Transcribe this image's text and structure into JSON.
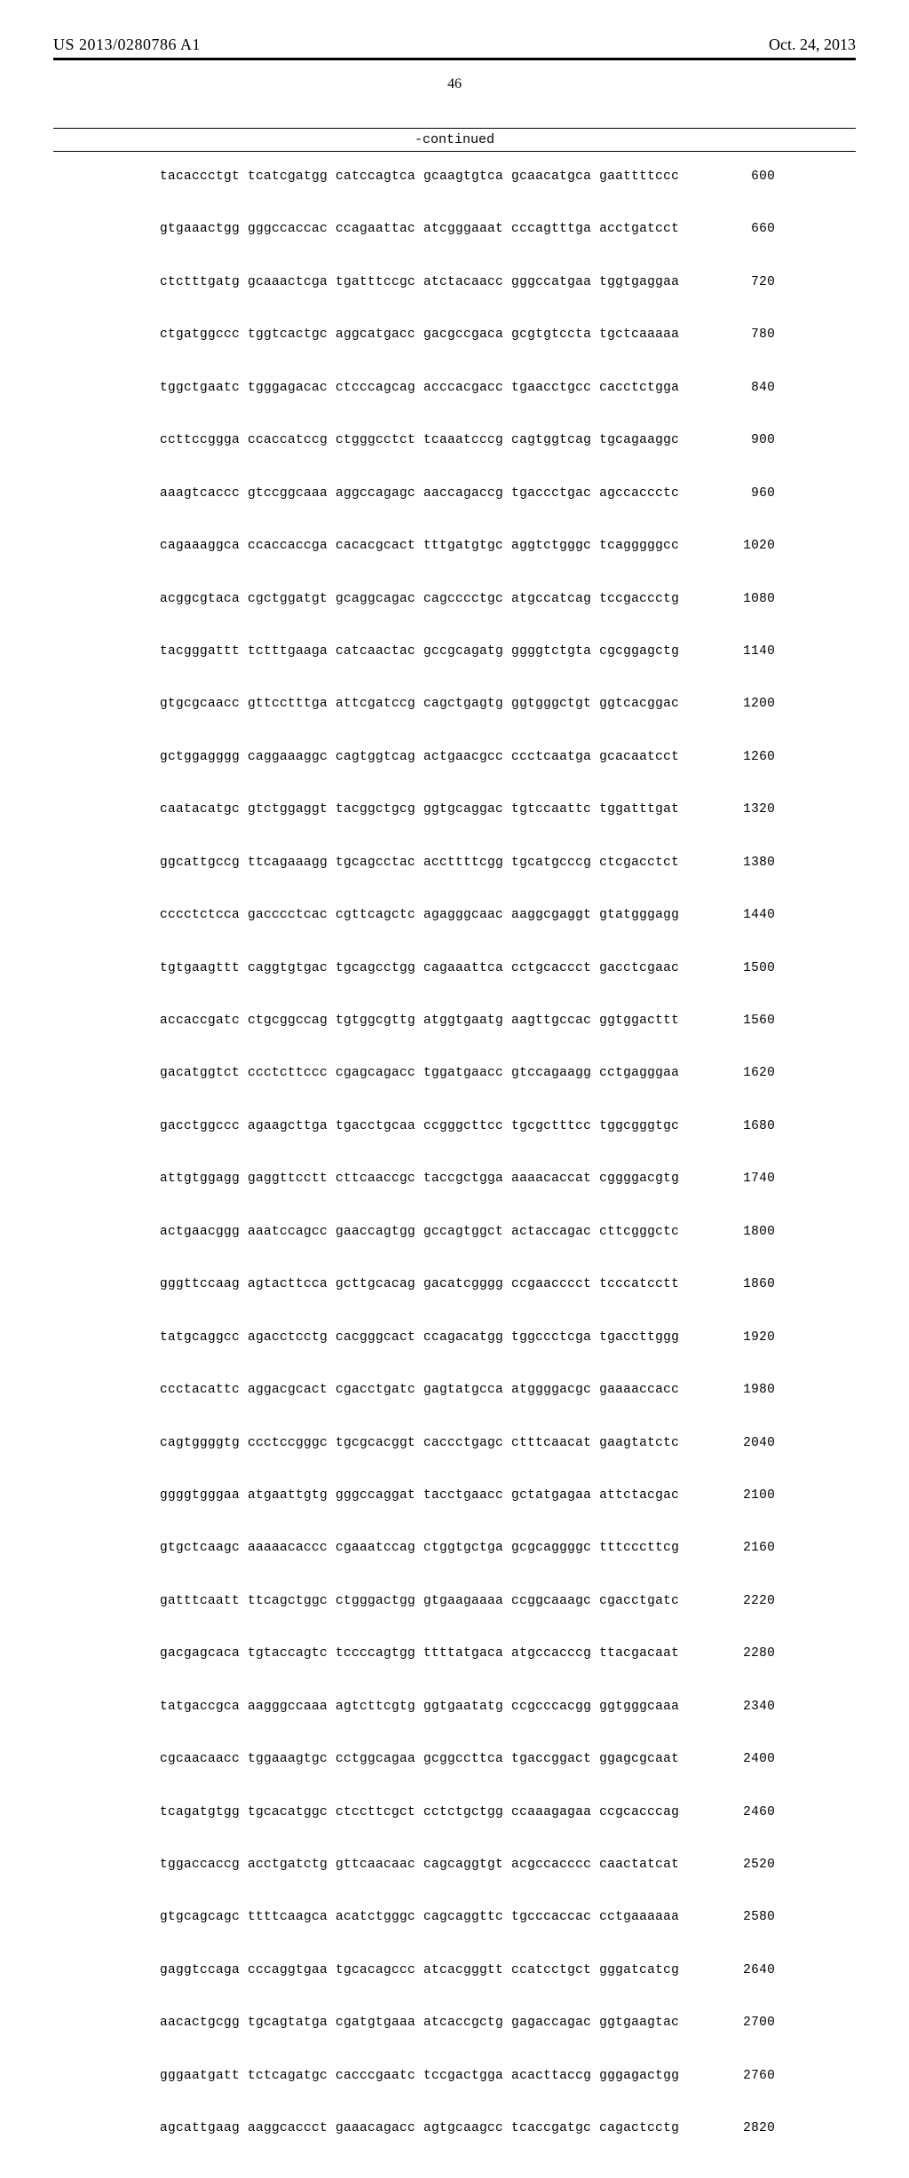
{
  "header": {
    "pub_number": "US 2013/0280786 A1",
    "pub_date": "Oct. 24, 2013",
    "page_number": "46",
    "continued_label": "-continued"
  },
  "sequence": {
    "rows": [
      {
        "groups": [
          "tacaccctgt",
          "tcatcgatgg",
          "catccagtca",
          "gcaagtgtca",
          "gcaacatgca",
          "gaattttccc"
        ],
        "pos": "600"
      },
      {
        "groups": [
          "gtgaaactgg",
          "gggccaccac",
          "ccagaattac",
          "atcgggaaat",
          "cccagtttga",
          "acctgatcct"
        ],
        "pos": "660"
      },
      {
        "groups": [
          "ctctttgatg",
          "gcaaactcga",
          "tgatttccgc",
          "atctacaacc",
          "gggccatgaa",
          "tggtgaggaa"
        ],
        "pos": "720"
      },
      {
        "groups": [
          "ctgatggccc",
          "tggtcactgc",
          "aggcatgacc",
          "gacgccgaca",
          "gcgtgtccta",
          "tgctcaaaaa"
        ],
        "pos": "780"
      },
      {
        "groups": [
          "tggctgaatc",
          "tgggagacac",
          "ctcccagcag",
          "acccacgacc",
          "tgaacctgcc",
          "cacctctgga"
        ],
        "pos": "840"
      },
      {
        "groups": [
          "ccttccggga",
          "ccaccatccg",
          "ctgggcctct",
          "tcaaatcccg",
          "cagtggtcag",
          "tgcagaaggc"
        ],
        "pos": "900"
      },
      {
        "groups": [
          "aaagtcaccc",
          "gtccggcaaa",
          "aggccagagc",
          "aaccagaccg",
          "tgaccctgac",
          "agccaccctc"
        ],
        "pos": "960"
      },
      {
        "groups": [
          "cagaaaggca",
          "ccaccaccga",
          "cacacgcact",
          "tttgatgtgc",
          "aggtctgggc",
          "tcagggggcc"
        ],
        "pos": "1020"
      },
      {
        "groups": [
          "acggcgtaca",
          "cgctggatgt",
          "gcaggcagac",
          "cagcccctgc",
          "atgccatcag",
          "tccgaccctg"
        ],
        "pos": "1080"
      },
      {
        "groups": [
          "tacgggattt",
          "tctttgaaga",
          "catcaactac",
          "gccgcagatg",
          "ggggtctgta",
          "cgcggagctg"
        ],
        "pos": "1140"
      },
      {
        "groups": [
          "gtgcgcaacc",
          "gttcctttga",
          "attcgatccg",
          "cagctgagtg",
          "ggtgggctgt",
          "ggtcacggac"
        ],
        "pos": "1200"
      },
      {
        "groups": [
          "gctggagggg",
          "caggaaaggc",
          "cagtggtcag",
          "actgaacgcc",
          "ccctcaatga",
          "gcacaatcct"
        ],
        "pos": "1260"
      },
      {
        "groups": [
          "caatacatgc",
          "gtctggaggt",
          "tacggctgcg",
          "ggtgcaggac",
          "tgtccaattc",
          "tggatttgat"
        ],
        "pos": "1320"
      },
      {
        "groups": [
          "ggcattgccg",
          "ttcagaaagg",
          "tgcagcctac",
          "accttttcgg",
          "tgcatgcccg",
          "ctcgacctct"
        ],
        "pos": "1380"
      },
      {
        "groups": [
          "cccctctcca",
          "gacccctcac",
          "cgttcagctc",
          "agagggcaac",
          "aaggcgaggt",
          "gtatgggagg"
        ],
        "pos": "1440"
      },
      {
        "groups": [
          "tgtgaagttt",
          "caggtgtgac",
          "tgcagcctgg",
          "cagaaattca",
          "cctgcaccct",
          "gacctcgaac"
        ],
        "pos": "1500"
      },
      {
        "groups": [
          "accaccgatc",
          "ctgcggccag",
          "tgtggcgttg",
          "atggtgaatg",
          "aagttgccac",
          "ggtggacttt"
        ],
        "pos": "1560"
      },
      {
        "groups": [
          "gacatggtct",
          "ccctcttccc",
          "cgagcagacc",
          "tggatgaacc",
          "gtccagaagg",
          "cctgagggaa"
        ],
        "pos": "1620"
      },
      {
        "groups": [
          "gacctggccc",
          "agaagcttga",
          "tgacctgcaa",
          "ccgggcttcc",
          "tgcgctttcc",
          "tggcgggtgc"
        ],
        "pos": "1680"
      },
      {
        "groups": [
          "attgtggagg",
          "gaggttcctt",
          "cttcaaccgc",
          "taccgctgga",
          "aaaacaccat",
          "cggggacgtg"
        ],
        "pos": "1740"
      },
      {
        "groups": [
          "actgaacggg",
          "aaatccagcc",
          "gaaccagtgg",
          "gccagtggct",
          "actaccagac",
          "cttcgggctc"
        ],
        "pos": "1800"
      },
      {
        "groups": [
          "gggttccaag",
          "agtacttcca",
          "gcttgcacag",
          "gacatcgggg",
          "ccgaacccct",
          "tcccatcctt"
        ],
        "pos": "1860"
      },
      {
        "groups": [
          "tatgcaggcc",
          "agacctcctg",
          "cacgggcact",
          "ccagacatgg",
          "tggccctcga",
          "tgaccttggg"
        ],
        "pos": "1920"
      },
      {
        "groups": [
          "ccctacattc",
          "aggacgcact",
          "cgacctgatc",
          "gagtatgcca",
          "atggggacgc",
          "gaaaaccacc"
        ],
        "pos": "1980"
      },
      {
        "groups": [
          "cagtggggtg",
          "ccctccgggc",
          "tgcgcacggt",
          "caccctgagc",
          "ctttcaacat",
          "gaagtatctc"
        ],
        "pos": "2040"
      },
      {
        "groups": [
          "ggggtgggaa",
          "atgaattgtg",
          "gggccaggat",
          "tacctgaacc",
          "gctatgagaa",
          "attctacgac"
        ],
        "pos": "2100"
      },
      {
        "groups": [
          "gtgctcaagc",
          "aaaaacaccc",
          "cgaaatccag",
          "ctggtgctga",
          "gcgcaggggc",
          "tttcccttcg"
        ],
        "pos": "2160"
      },
      {
        "groups": [
          "gatttcaatt",
          "ttcagctggc",
          "ctgggactgg",
          "gtgaagaaaa",
          "ccggcaaagc",
          "cgacctgatc"
        ],
        "pos": "2220"
      },
      {
        "groups": [
          "gacgagcaca",
          "tgtaccagtc",
          "tccccagtgg",
          "ttttatgaca",
          "atgccacccg",
          "ttacgacaat"
        ],
        "pos": "2280"
      },
      {
        "groups": [
          "tatgaccgca",
          "aagggccaaa",
          "agtcttcgtg",
          "ggtgaatatg",
          "ccgcccacgg",
          "ggtgggcaaa"
        ],
        "pos": "2340"
      },
      {
        "groups": [
          "cgcaacaacc",
          "tggaaagtgc",
          "cctggcagaa",
          "gcggccttca",
          "tgaccggact",
          "ggagcgcaat"
        ],
        "pos": "2400"
      },
      {
        "groups": [
          "tcagatgtgg",
          "tgcacatggc",
          "ctccttcgct",
          "cctctgctgg",
          "ccaaagagaa",
          "ccgcacccag"
        ],
        "pos": "2460"
      },
      {
        "groups": [
          "tggaccaccg",
          "acctgatctg",
          "gttcaacaac",
          "cagcaggtgt",
          "acgccacccc",
          "caactatcat"
        ],
        "pos": "2520"
      },
      {
        "groups": [
          "gtgcagcagc",
          "ttttcaagca",
          "acatctgggc",
          "cagcaggttc",
          "tgcccaccac",
          "cctgaaaaaa"
        ],
        "pos": "2580"
      },
      {
        "groups": [
          "gaggtccaga",
          "cccaggtgaa",
          "tgcacagccc",
          "atcacgggtt",
          "ccatcctgct",
          "gggatcatcg"
        ],
        "pos": "2640"
      },
      {
        "groups": [
          "aacactgcgg",
          "tgcagtatga",
          "cgatgtgaaa",
          "atcaccgctg",
          "gagaccagac",
          "ggtgaagtac"
        ],
        "pos": "2700"
      },
      {
        "groups": [
          "gggaatgatt",
          "tctcagatgc",
          "cacccgaatc",
          "tccgactgga",
          "acacttaccg",
          "gggagactgg"
        ],
        "pos": "2760"
      },
      {
        "groups": [
          "agcattgaag",
          "aaggcaccct",
          "gaaacagacc",
          "agtgcaagcc",
          "tcaccgatgc",
          "cagactcctg"
        ],
        "pos": "2820"
      }
    ]
  }
}
